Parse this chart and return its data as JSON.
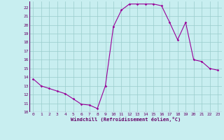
{
  "x": [
    0,
    1,
    2,
    3,
    4,
    5,
    6,
    7,
    8,
    9,
    10,
    11,
    12,
    13,
    14,
    15,
    16,
    17,
    18,
    19,
    20,
    21,
    22,
    23
  ],
  "y": [
    13.8,
    13.0,
    12.7,
    12.4,
    12.1,
    11.5,
    10.9,
    10.8,
    10.4,
    13.0,
    19.8,
    21.7,
    22.4,
    22.4,
    22.4,
    22.4,
    22.2,
    20.3,
    18.3,
    20.3,
    16.0,
    15.8,
    15.0,
    14.8
  ],
  "line_color": "#990099",
  "marker": "D",
  "marker_size": 1.8,
  "bg_color": "#c8eef0",
  "grid_color": "#99cccc",
  "xlabel": "Windchill (Refroidissement éolien,°C)",
  "xlabel_color": "#660066",
  "tick_color": "#660066",
  "xlim_min": -0.5,
  "xlim_max": 23.5,
  "ylim_min": 10,
  "ylim_max": 22.7,
  "yticks": [
    10,
    11,
    12,
    13,
    14,
    15,
    16,
    17,
    18,
    19,
    20,
    21,
    22
  ],
  "xticks": [
    0,
    1,
    2,
    3,
    4,
    5,
    6,
    7,
    8,
    9,
    10,
    11,
    12,
    13,
    14,
    15,
    16,
    17,
    18,
    19,
    20,
    21,
    22,
    23
  ]
}
